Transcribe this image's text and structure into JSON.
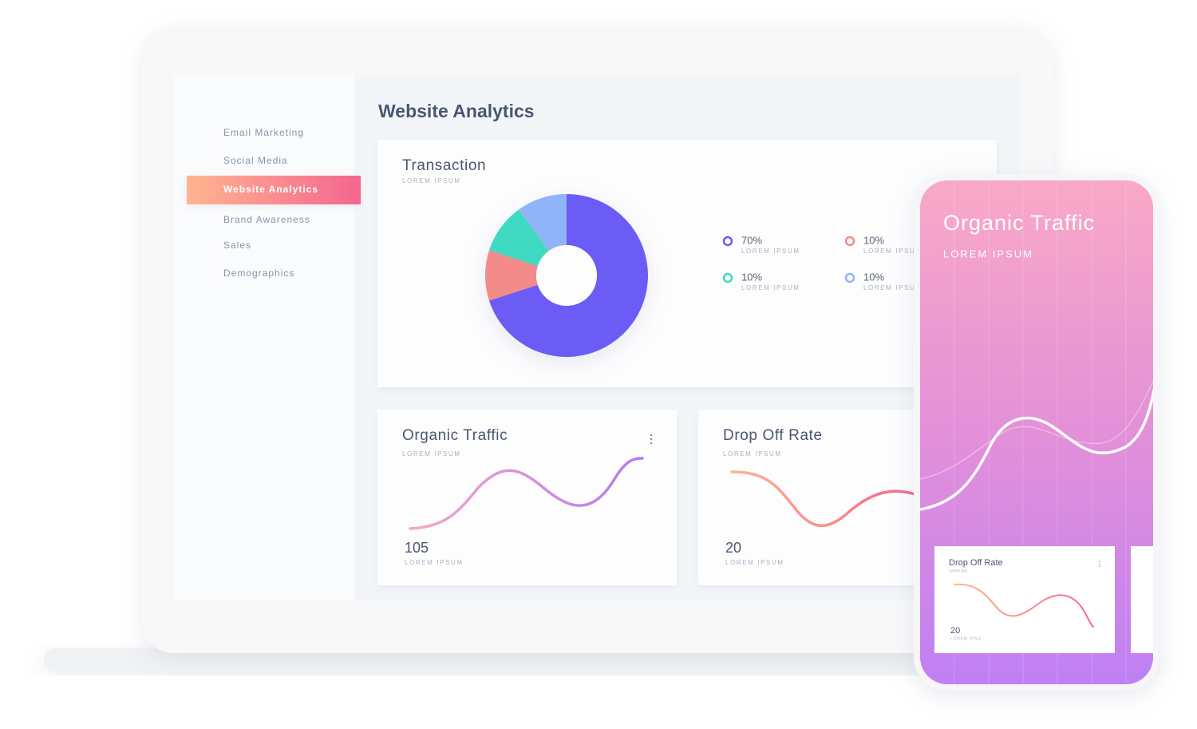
{
  "sidebar": {
    "items": [
      "Email Marketing",
      "Social Media",
      "Website Analytics",
      "Brand Awareness",
      "Sales",
      "Demographics"
    ],
    "active": 2
  },
  "header": {
    "title": "Website Analytics"
  },
  "transaction": {
    "title": "Transaction",
    "subtitle": "LOREM IPSUM",
    "chart_data": {
      "type": "pie",
      "values": [
        70,
        10,
        10,
        10
      ],
      "value_labels": [
        "70%",
        "10%",
        "10%",
        "10%"
      ],
      "legend_captions": [
        "LOREM IPSUM",
        "LOREM IPSUM",
        "LOREM IPSUM",
        "LOREM IPSUM"
      ],
      "colors": [
        "#6a5cf5",
        "#f38b8b",
        "#3fd9c2",
        "#90b4f8"
      ]
    }
  },
  "cards": [
    {
      "title": "Organic Traffic",
      "subtitle": "LOREM IPSUM",
      "value": 105,
      "caption": "LOREM IPSUM"
    },
    {
      "title": "Drop Off Rate",
      "subtitle": "LOREM IPSUM",
      "value": 20,
      "caption": "LOREM IPSUM"
    }
  ],
  "phone": {
    "title": "Organic Traffic",
    "subtitle": "LOREM IPSUM",
    "card": {
      "title": "Drop Off Rate",
      "subtitle": "Lorem ipsl",
      "value": 20,
      "caption": "LOREM IPSU"
    }
  }
}
